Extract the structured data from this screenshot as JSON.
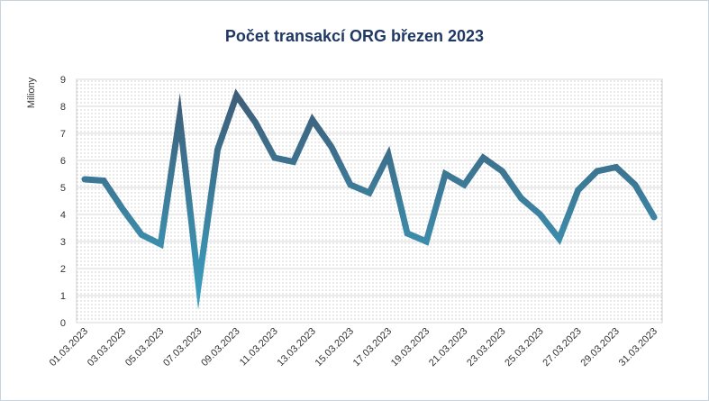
{
  "chart_data": {
    "type": "line",
    "title": "Počet transakcí  ORG březen 2023",
    "xlabel": "",
    "ylabel": "Miliony",
    "ylim": [
      0,
      9
    ],
    "yticks": [
      0,
      1,
      2,
      3,
      4,
      5,
      6,
      7,
      8,
      9
    ],
    "grid": true,
    "x": [
      "01.03.2023",
      "02.03.2023",
      "03.03.2023",
      "04.03.2023",
      "05.03.2023",
      "06.03.2023",
      "07.03.2023",
      "08.03.2023",
      "09.03.2023",
      "10.03.2023",
      "11.03.2023",
      "12.03.2023",
      "13.03.2023",
      "14.03.2023",
      "15.03.2023",
      "16.03.2023",
      "17.03.2023",
      "18.03.2023",
      "19.03.2023",
      "20.03.2023",
      "21.03.2023",
      "22.03.2023",
      "23.03.2023",
      "24.03.2023",
      "25.03.2023",
      "26.03.2023",
      "27.03.2023",
      "28.03.2023",
      "29.03.2023",
      "30.03.2023",
      "31.03.2023"
    ],
    "xtick_labels": [
      "01.03.2023",
      "03.03.2023",
      "05.03.2023",
      "07.03.2023",
      "09.03.2023",
      "11.03.2023",
      "13.03.2023",
      "15.03.2023",
      "17.03.2023",
      "19.03.2023",
      "21.03.2023",
      "23.03.2023",
      "25.03.2023",
      "27.03.2023",
      "29.03.2023",
      "31.03.2023"
    ],
    "series": [
      {
        "values": [
          5.3,
          5.25,
          4.2,
          3.25,
          2.9,
          7.6,
          1.4,
          6.4,
          8.4,
          7.4,
          6.1,
          5.95,
          7.5,
          6.5,
          5.1,
          4.8,
          6.2,
          3.3,
          3.0,
          5.5,
          5.1,
          6.1,
          5.6,
          4.6,
          4.0,
          3.1,
          4.9,
          5.6,
          5.75,
          5.1,
          3.9
        ]
      }
    ],
    "colors": {
      "line_light": "#3aa6c6",
      "line_dark": "#3e5873",
      "grid": "#d9d9d9",
      "plot_dots": "#9a9a9a"
    }
  }
}
